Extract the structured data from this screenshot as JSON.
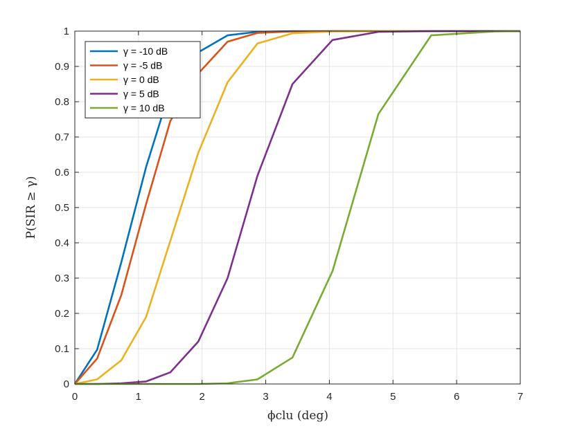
{
  "chart_data": {
    "type": "line",
    "xlabel": "ϕclu (deg)",
    "ylabel": "P(SIR ≥ γ)",
    "xlim": [
      0,
      7
    ],
    "ylim": [
      0,
      1
    ],
    "xticks": [
      "0",
      "1",
      "2",
      "3",
      "4",
      "5",
      "6",
      "7"
    ],
    "yticks": [
      "0",
      "0.1",
      "0.2",
      "0.3",
      "0.4",
      "0.5",
      "0.6",
      "0.7",
      "0.8",
      "0.9",
      "1"
    ],
    "grid": true,
    "legend_position": "top-left",
    "x": [
      0,
      0.35,
      0.73,
      1.12,
      1.5,
      1.94,
      2.4,
      2.87,
      3.42,
      4.05,
      4.77,
      5.6,
      6.6,
      7.0
    ],
    "series": [
      {
        "name": "γ = -10 dB",
        "color": "#0072BD",
        "values": [
          0,
          0.097,
          0.345,
          0.615,
          0.835,
          0.94,
          0.988,
          0.998,
          1.0,
          1.0,
          1.0,
          1.0,
          1.0,
          1.0
        ]
      },
      {
        "name": "γ = -5 dB",
        "color": "#D95319",
        "values": [
          0,
          0.072,
          0.252,
          0.51,
          0.745,
          0.88,
          0.97,
          0.995,
          0.999,
          1.0,
          1.0,
          1.0,
          1.0,
          1.0
        ]
      },
      {
        "name": "γ = 0 dB",
        "color": "#EDB120",
        "values": [
          0,
          0.013,
          0.067,
          0.19,
          0.405,
          0.655,
          0.855,
          0.965,
          0.994,
          0.999,
          1.0,
          1.0,
          1.0,
          1.0
        ]
      },
      {
        "name": "γ = 5 dB",
        "color": "#7E2F8E",
        "values": [
          0,
          0.0,
          0.002,
          0.007,
          0.033,
          0.12,
          0.3,
          0.59,
          0.85,
          0.975,
          0.998,
          1.0,
          1.0,
          1.0
        ]
      },
      {
        "name": "γ = 10 dB",
        "color": "#77AC30",
        "values": [
          0,
          0.0,
          0.0,
          0.0,
          0.0,
          0.0,
          0.002,
          0.013,
          0.075,
          0.32,
          0.765,
          0.988,
          0.999,
          1.0
        ]
      }
    ]
  }
}
